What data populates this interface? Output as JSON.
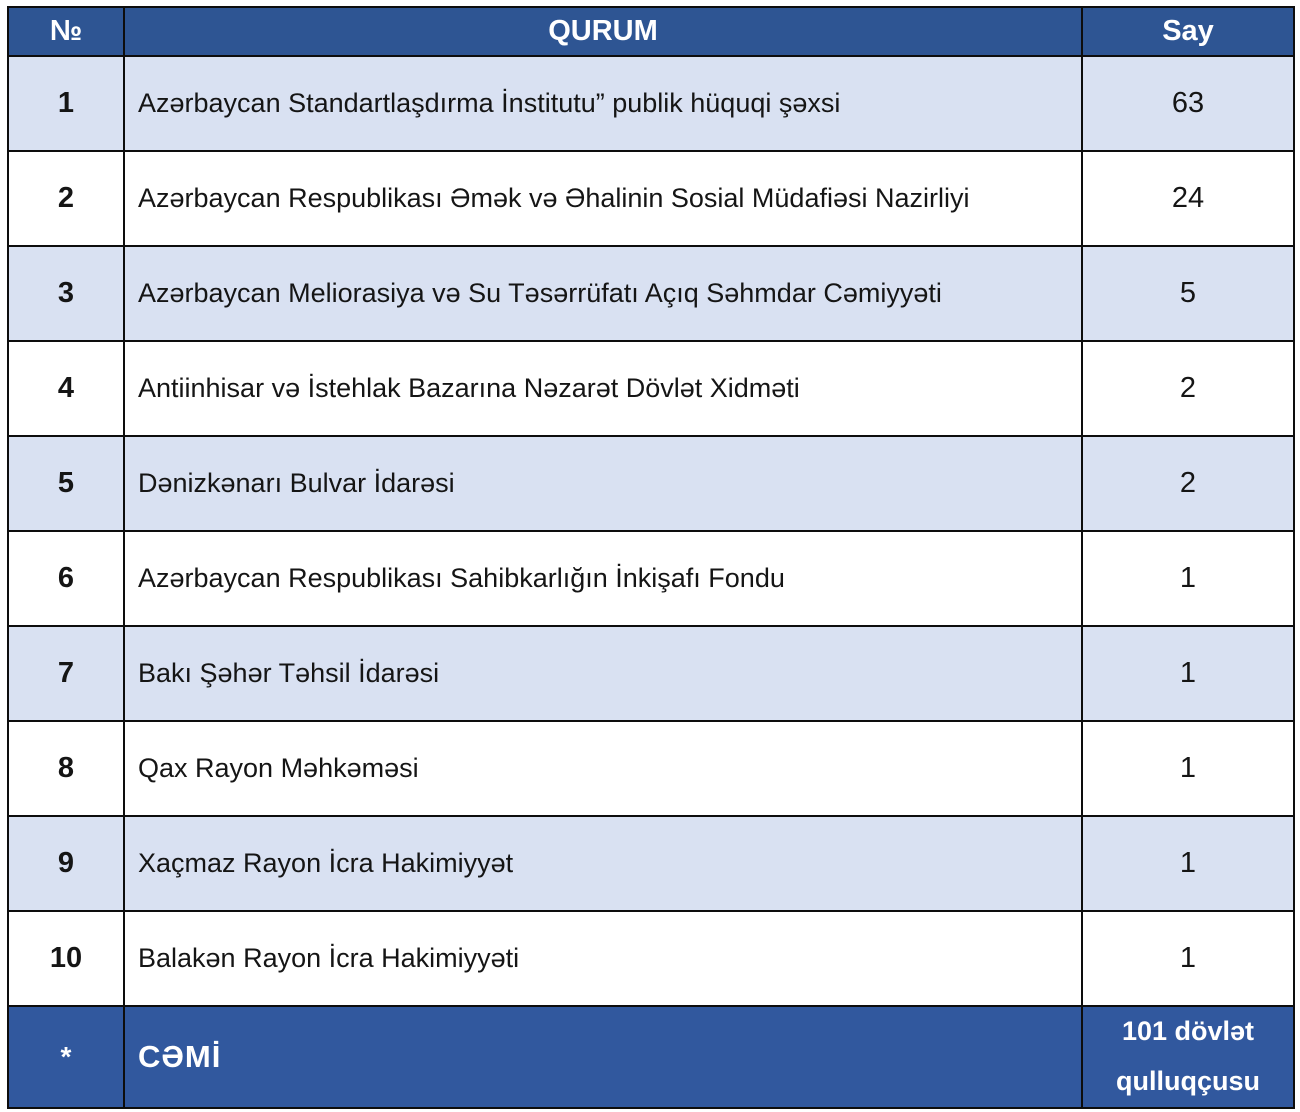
{
  "colors": {
    "header_bg": "#2e5593",
    "footer_bg": "#31589e",
    "row_alt_bg": "#d9e1f2",
    "row_bg": "#ffffff",
    "border": "#0d0d0d",
    "header_text": "#ffffff",
    "body_text": "#151515"
  },
  "table": {
    "columns": [
      {
        "key": "no",
        "label": "№"
      },
      {
        "key": "qurum",
        "label": "QURUM"
      },
      {
        "key": "say",
        "label": "Say"
      }
    ],
    "rows": [
      {
        "no": "1",
        "qurum": "Azərbaycan Standartlaşdırma İnstitutu” publik hüquqi şəxsi",
        "say": "63"
      },
      {
        "no": "2",
        "qurum": "Azərbaycan Respublikası Əmək və Əhalinin Sosial Müdafiəsi Nazirliyi",
        "say": "24"
      },
      {
        "no": "3",
        "qurum": "Azərbaycan Meliorasiya və Su Təsərrüfatı Açıq Səhmdar Cəmiyyəti",
        "say": "5"
      },
      {
        "no": "4",
        "qurum": "Antiinhisar və İstehlak Bazarına Nəzarət Dövlət Xidməti",
        "say": "2"
      },
      {
        "no": "5",
        "qurum": "Dənizkənarı Bulvar İdarəsi",
        "say": "2"
      },
      {
        "no": "6",
        "qurum": "Azərbaycan Respublikası Sahibkarlığın İnkişafı Fondu",
        "say": "1"
      },
      {
        "no": "7",
        "qurum": "Bakı Şəhər Təhsil İdarəsi",
        "say": "1"
      },
      {
        "no": "8",
        "qurum": "Qax Rayon Məhkəməsi",
        "say": "1"
      },
      {
        "no": "9",
        "qurum": "Xaçmaz Rayon İcra Hakimiyyət",
        "say": "1"
      },
      {
        "no": "10",
        "qurum": "Balakən Rayon İcra Hakimiyyəti",
        "say": "1"
      }
    ],
    "footer": {
      "no": "*",
      "qurum": "CƏMİ",
      "say": "101 dövlət qulluqçusu"
    }
  }
}
